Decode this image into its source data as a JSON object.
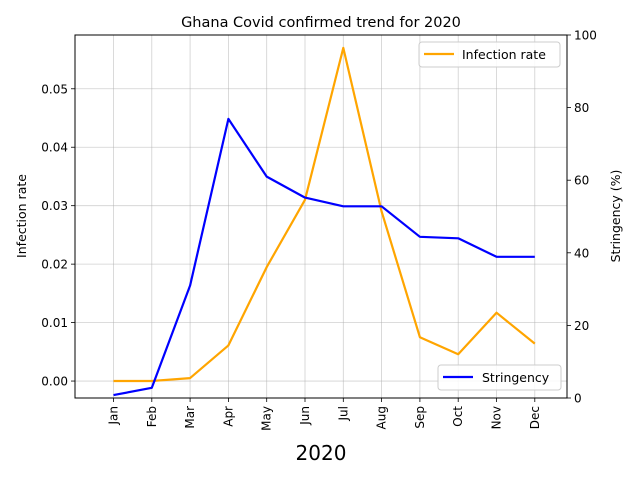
{
  "chart_data": {
    "type": "line",
    "title": "Ghana Covid confirmed trend for 2020",
    "xlabel": "2020",
    "ylabel_left": "Infection rate",
    "ylabel_right": "Stringency (%)",
    "categories": [
      "Jan",
      "Feb",
      "Mar",
      "Apr",
      "May",
      "Jun",
      "Jul",
      "Aug",
      "Sep",
      "Oct",
      "Nov",
      "Dec"
    ],
    "ylim_left": [
      -0.0029,
      0.0592
    ],
    "ylim_right": [
      0,
      100
    ],
    "yticks_left": [
      "0.00",
      "0.01",
      "0.02",
      "0.03",
      "0.04",
      "0.05"
    ],
    "yticks_right": [
      "0",
      "20",
      "40",
      "60",
      "80",
      "100"
    ],
    "grid": true,
    "series": [
      {
        "name": "Infection rate",
        "axis": "left",
        "color": "#ffa500",
        "values": [
          0.0,
          0.0,
          0.0005,
          0.0061,
          0.0195,
          0.031,
          0.057,
          0.029,
          0.0075,
          0.0046,
          0.0117,
          0.0064
        ],
        "legend_position": "upper-right"
      },
      {
        "name": "Stringency",
        "axis": "right",
        "color": "#0000ff",
        "values": [
          0.8,
          2.8,
          31.0,
          76.9,
          61.0,
          55.2,
          52.8,
          52.8,
          44.4,
          44.0,
          38.9,
          38.9
        ],
        "legend_position": "lower-right"
      }
    ]
  }
}
